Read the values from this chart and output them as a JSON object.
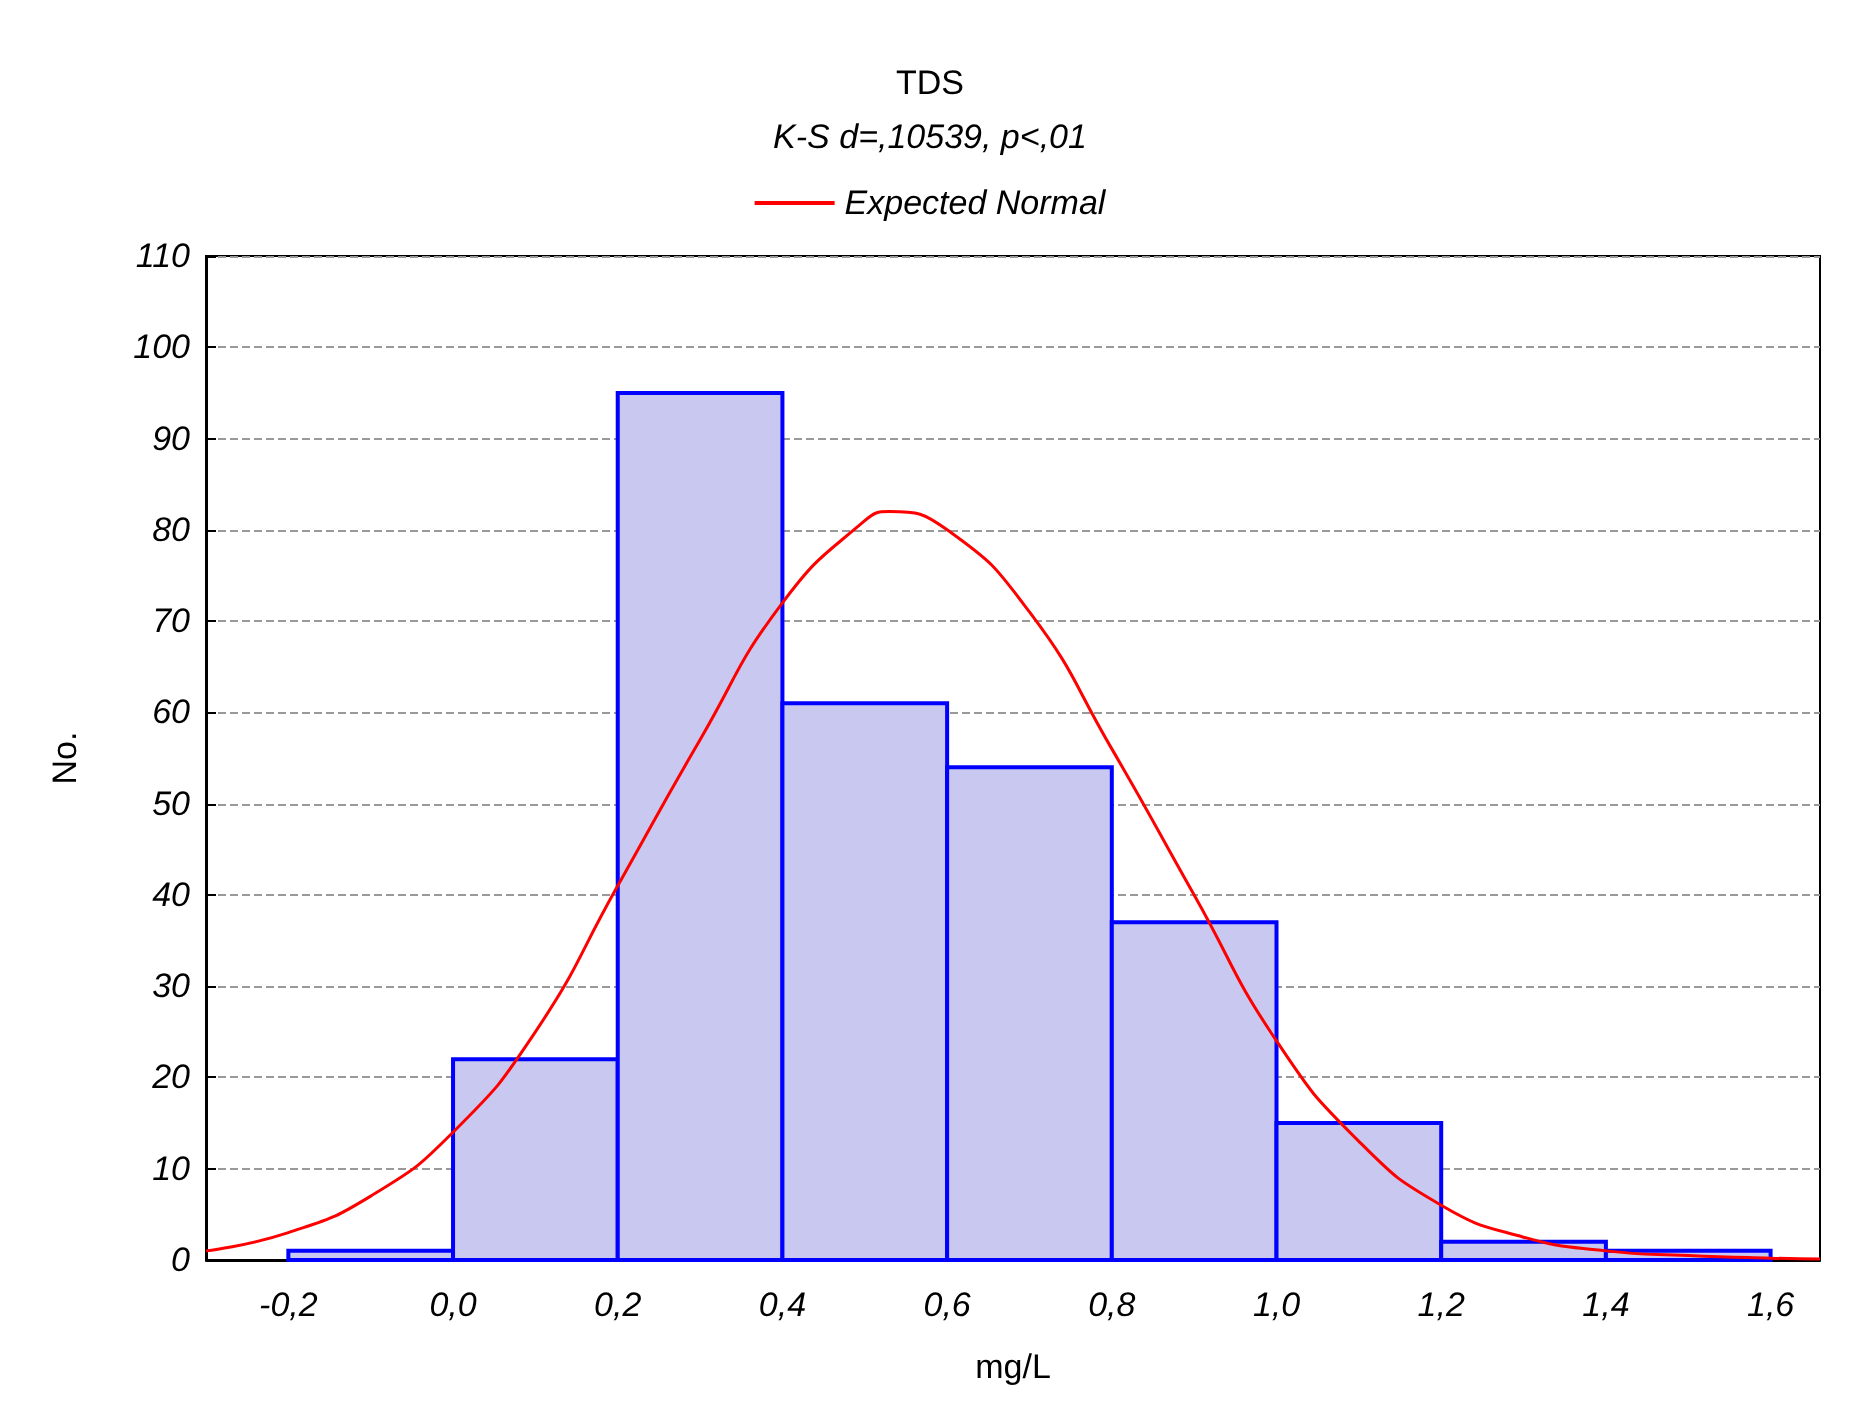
{
  "chart_data": {
    "type": "histogram",
    "title": "TDS",
    "subtitle": "K-S d=,10539, p<,01",
    "xlabel": "mg/L",
    "ylabel": "No.",
    "bins": [
      -0.2,
      0,
      0.2,
      0.4,
      0.6,
      0.8,
      1.0,
      1.2,
      1.4,
      1.6
    ],
    "values": [
      1,
      22,
      95,
      61,
      54,
      37,
      15,
      2,
      1
    ],
    "color": "#c8c8f0",
    "series": [
      {
        "type": "line",
        "name": "Expected Normal",
        "color": "#ff0000",
        "marker": "none",
        "x": [
          -0.3,
          -0.2,
          -0.1,
          0,
          0.1,
          0.2,
          0.3,
          0.4,
          0.5,
          0.53,
          0.6,
          0.7,
          0.8,
          0.9,
          1.0,
          1.1,
          1.2,
          1.3,
          1.4,
          1.5,
          1.6,
          1.66
        ],
        "values": [
          1,
          3,
          7,
          14,
          25,
          41,
          57,
          72,
          81,
          82,
          80,
          71,
          56,
          40,
          24,
          13,
          6,
          2.5,
          1,
          0.5,
          0.2,
          0.1
        ]
      }
    ],
    "xlim": [
      -0.3,
      1.66
    ],
    "xticks": [
      {
        "value": -0.2,
        "label": "-0,2"
      },
      {
        "value": 0,
        "label": "0,0"
      },
      {
        "value": 0.2,
        "label": "0,2"
      },
      {
        "value": 0.4,
        "label": "0,4"
      },
      {
        "value": 0.6,
        "label": "0,6"
      },
      {
        "value": 0.8,
        "label": "0,8"
      },
      {
        "value": 1.0,
        "label": "1,0"
      },
      {
        "value": 1.2,
        "label": "1,2"
      },
      {
        "value": 1.4,
        "label": "1,4"
      },
      {
        "value": 1.6,
        "label": "1,6"
      }
    ],
    "ylim": [
      0,
      110
    ],
    "yticks": [
      0,
      10,
      20,
      30,
      40,
      50,
      60,
      70,
      80,
      90,
      100,
      110
    ],
    "grid": "y",
    "legend": "top"
  }
}
